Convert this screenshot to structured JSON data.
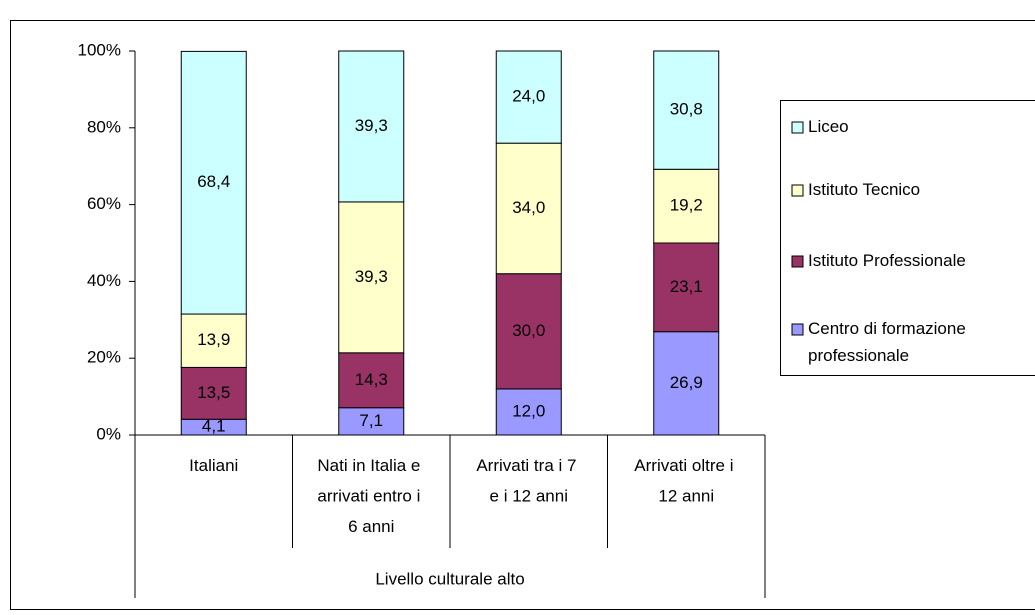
{
  "chart_data": {
    "type": "stacked_bar",
    "categories": [
      "Italiani",
      "Nati in Italia e arrivati entro i 6 anni",
      "Arrivati tra i 7 e i 12 anni",
      "Arrivati oltre i 12 anni"
    ],
    "group_label": "Livello culturale alto",
    "series": [
      {
        "name": "Centro di formazione professionale",
        "color": "#9999ff",
        "values": [
          4.1,
          7.1,
          12.0,
          26.9
        ],
        "value_labels": [
          "4,1",
          "7,1",
          "12,0",
          "26,9"
        ]
      },
      {
        "name": "Istituto Professionale",
        "color": "#993366",
        "values": [
          13.5,
          14.3,
          30.0,
          23.1
        ],
        "value_labels": [
          "13,5",
          "14,3",
          "30,0",
          "23,1"
        ]
      },
      {
        "name": "Istituto Tecnico",
        "color": "#ffffcc",
        "values": [
          13.9,
          39.3,
          34.0,
          19.2
        ],
        "value_labels": [
          "13,9",
          "39,3",
          "34,0",
          "19,2"
        ]
      },
      {
        "name": "Liceo",
        "color": "#ccffff",
        "values": [
          68.4,
          39.3,
          24.0,
          30.8
        ],
        "value_labels": [
          "68,4",
          "39,3",
          "24,0",
          "30,8"
        ]
      }
    ],
    "ylim": [
      0,
      100
    ],
    "yticks": [
      {
        "value": 0,
        "label": "0%"
      },
      {
        "value": 20,
        "label": "20%"
      },
      {
        "value": 40,
        "label": "40%"
      },
      {
        "value": 60,
        "label": "60%"
      },
      {
        "value": 80,
        "label": "80%"
      },
      {
        "value": 100,
        "label": "100%"
      }
    ],
    "legend": "right"
  }
}
